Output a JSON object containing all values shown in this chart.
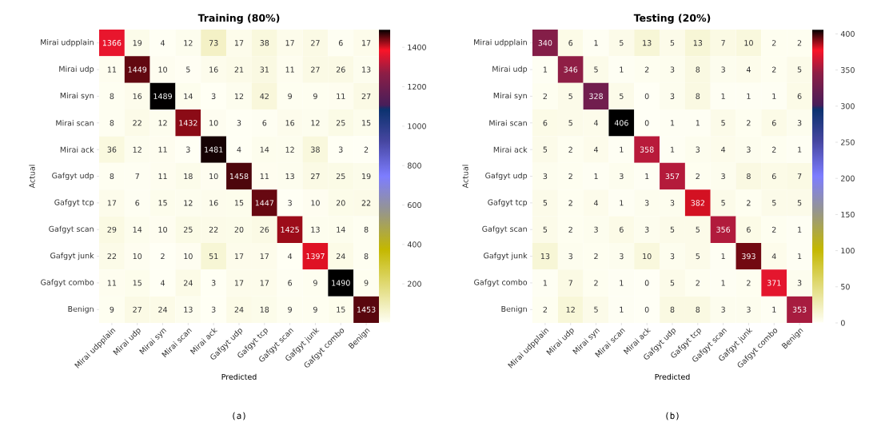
{
  "chart_data": [
    {
      "type": "heatmap",
      "title": "Training (80%)",
      "xlabel": "Predicted",
      "ylabel": "Actual",
      "categories": [
        "Mirai udpplain",
        "Mirai udp",
        "Mirai syn",
        "Mirai scan",
        "Mirai ack",
        "Gafgyt udp",
        "Gafgyt tcp",
        "Gafgyt scan",
        "Gafgyt junk",
        "Gafgyt combo",
        "Benign"
      ],
      "y_categories": [
        "Mirai udpplain",
        "Mirai udp",
        "Mirai syn",
        "Mirai scan",
        "Mirai ack",
        "Gafgyt udp",
        "Gafgyt tcp",
        "Gafgyt scan",
        "Gafgyt junk",
        "Gafgyt combo",
        "Benign"
      ],
      "cells": [
        [
          1366,
          19,
          4,
          12,
          73,
          17,
          38,
          17,
          27,
          6,
          17
        ],
        [
          11,
          1449,
          10,
          5,
          16,
          21,
          31,
          11,
          27,
          26,
          13
        ],
        [
          8,
          16,
          1489,
          14,
          3,
          12,
          42,
          9,
          9,
          11,
          27
        ],
        [
          8,
          22,
          12,
          1432,
          10,
          3,
          6,
          16,
          12,
          25,
          15
        ],
        [
          36,
          12,
          11,
          3,
          1481,
          4,
          14,
          12,
          38,
          3,
          2
        ],
        [
          8,
          7,
          11,
          18,
          10,
          1458,
          11,
          13,
          27,
          25,
          19
        ],
        [
          17,
          6,
          15,
          12,
          16,
          15,
          1447,
          3,
          10,
          20,
          22
        ],
        [
          29,
          14,
          10,
          25,
          22,
          20,
          26,
          1425,
          13,
          14,
          8
        ],
        [
          22,
          10,
          2,
          10,
          51,
          17,
          17,
          4,
          1397,
          24,
          8
        ],
        [
          11,
          15,
          4,
          24,
          3,
          17,
          17,
          6,
          9,
          1490,
          9
        ],
        [
          9,
          27,
          24,
          13,
          3,
          24,
          18,
          9,
          9,
          15,
          1453
        ]
      ],
      "data_labels": true,
      "clim": [
        2,
        1490
      ],
      "cticks": [
        200,
        400,
        600,
        800,
        1000,
        1200,
        1400
      ],
      "annotations": [
        "(a)"
      ]
    },
    {
      "type": "heatmap",
      "title": "Testing (20%)",
      "xlabel": "Predicted",
      "ylabel": "Actual",
      "categories": [
        "Mirai udpplain",
        "Mirai udp",
        "Mirai syn",
        "Mirai scan",
        "Mirai ack",
        "Gafgyt udp",
        "Gafgyt tcp",
        "Gafgyt scan",
        "Gafgyt junk",
        "Gafgyt combo",
        "Benign"
      ],
      "y_categories": [
        "Mirai udpplain",
        "Mirai udp",
        "Mirai syn",
        "Mirai scan",
        "Mirai ack",
        "Gafgyt udp",
        "Gafgyt tcp",
        "Gafgyt scan",
        "Gafgyt junk",
        "Gafgyt combo",
        "Benign"
      ],
      "cells": [
        [
          340,
          6,
          1,
          5,
          13,
          5,
          13,
          7,
          10,
          2,
          2
        ],
        [
          1,
          346,
          5,
          1,
          2,
          3,
          8,
          3,
          4,
          2,
          5
        ],
        [
          2,
          5,
          328,
          5,
          0,
          3,
          8,
          1,
          1,
          1,
          6
        ],
        [
          6,
          5,
          4,
          406,
          0,
          1,
          1,
          5,
          2,
          6,
          3
        ],
        [
          5,
          2,
          4,
          1,
          358,
          1,
          3,
          4,
          3,
          2,
          1
        ],
        [
          3,
          2,
          1,
          3,
          1,
          357,
          2,
          3,
          8,
          6,
          7
        ],
        [
          5,
          2,
          4,
          1,
          3,
          3,
          382,
          5,
          2,
          5,
          5
        ],
        [
          5,
          2,
          3,
          6,
          3,
          5,
          5,
          356,
          6,
          2,
          1
        ],
        [
          13,
          3,
          2,
          3,
          10,
          3,
          5,
          1,
          393,
          4,
          1
        ],
        [
          1,
          7,
          2,
          1,
          0,
          5,
          2,
          1,
          2,
          371,
          3
        ],
        [
          2,
          12,
          5,
          1,
          0,
          8,
          8,
          3,
          3,
          1,
          353
        ]
      ],
      "data_labels": true,
      "clim": [
        0,
        406
      ],
      "cticks": [
        0,
        50,
        100,
        150,
        200,
        250,
        300,
        350,
        400
      ],
      "annotations": [
        "(b)"
      ]
    }
  ]
}
